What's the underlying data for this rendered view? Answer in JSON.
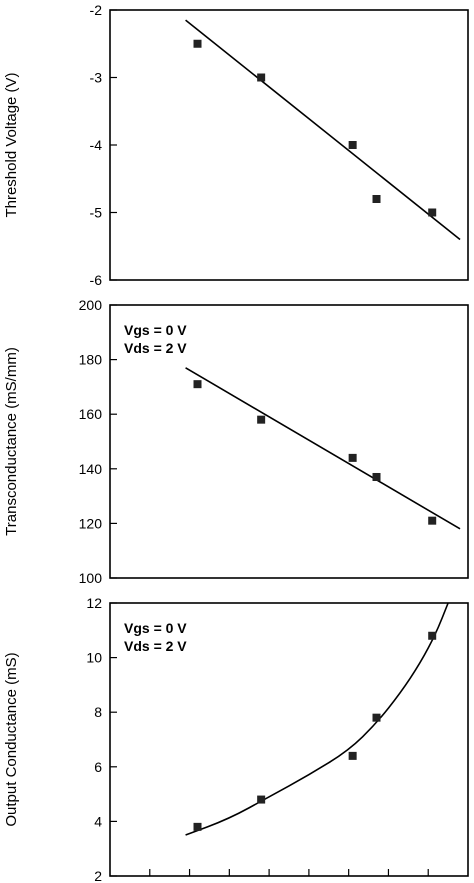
{
  "chart_data": [
    {
      "type": "scatter",
      "ylabel": "Threshold Voltage (V)",
      "ylim": [
        -6,
        -2
      ],
      "yticks": [
        -2,
        -3,
        -4,
        -5,
        -6
      ],
      "xlim": [
        0,
        9
      ],
      "points": [
        {
          "x": 2.2,
          "y": -2.5
        },
        {
          "x": 3.8,
          "y": -3.0
        },
        {
          "x": 6.1,
          "y": -4.0
        },
        {
          "x": 6.7,
          "y": -4.8
        },
        {
          "x": 8.1,
          "y": -5.0
        }
      ],
      "fit_line": [
        {
          "x": 1.9,
          "y": -2.15
        },
        {
          "x": 8.8,
          "y": -5.4
        }
      ],
      "annotations": []
    },
    {
      "type": "scatter",
      "ylabel": "Transconductance (mS/mm)",
      "ylim": [
        100,
        200
      ],
      "yticks": [
        200,
        180,
        160,
        140,
        120,
        100
      ],
      "xlim": [
        0,
        9
      ],
      "points": [
        {
          "x": 2.2,
          "y": 171
        },
        {
          "x": 3.8,
          "y": 158
        },
        {
          "x": 6.1,
          "y": 144
        },
        {
          "x": 6.7,
          "y": 137
        },
        {
          "x": 8.1,
          "y": 121
        }
      ],
      "fit_line": [
        {
          "x": 1.9,
          "y": 177
        },
        {
          "x": 8.8,
          "y": 118
        }
      ],
      "annotations": [
        "Vgs = 0 V",
        "Vds = 2 V"
      ]
    },
    {
      "type": "scatter",
      "ylabel": "Output Conductance (mS)",
      "ylim": [
        2,
        12
      ],
      "yticks": [
        12,
        10,
        8,
        6,
        4,
        2
      ],
      "xlim": [
        0,
        9
      ],
      "points": [
        {
          "x": 2.2,
          "y": 3.8
        },
        {
          "x": 3.8,
          "y": 4.8
        },
        {
          "x": 6.1,
          "y": 6.4
        },
        {
          "x": 6.7,
          "y": 7.8
        },
        {
          "x": 8.1,
          "y": 10.8
        }
      ],
      "fit_curve": [
        {
          "x": 1.9,
          "y": 3.5
        },
        {
          "x": 3.0,
          "y": 4.1
        },
        {
          "x": 4.0,
          "y": 4.9
        },
        {
          "x": 5.0,
          "y": 5.7
        },
        {
          "x": 6.0,
          "y": 6.6
        },
        {
          "x": 6.7,
          "y": 7.6
        },
        {
          "x": 7.3,
          "y": 8.7
        },
        {
          "x": 7.8,
          "y": 9.8
        },
        {
          "x": 8.2,
          "y": 10.9
        },
        {
          "x": 8.5,
          "y": 12.0
        }
      ],
      "annotations": [
        "Vgs = 0 V",
        "Vds = 2 V"
      ]
    }
  ]
}
